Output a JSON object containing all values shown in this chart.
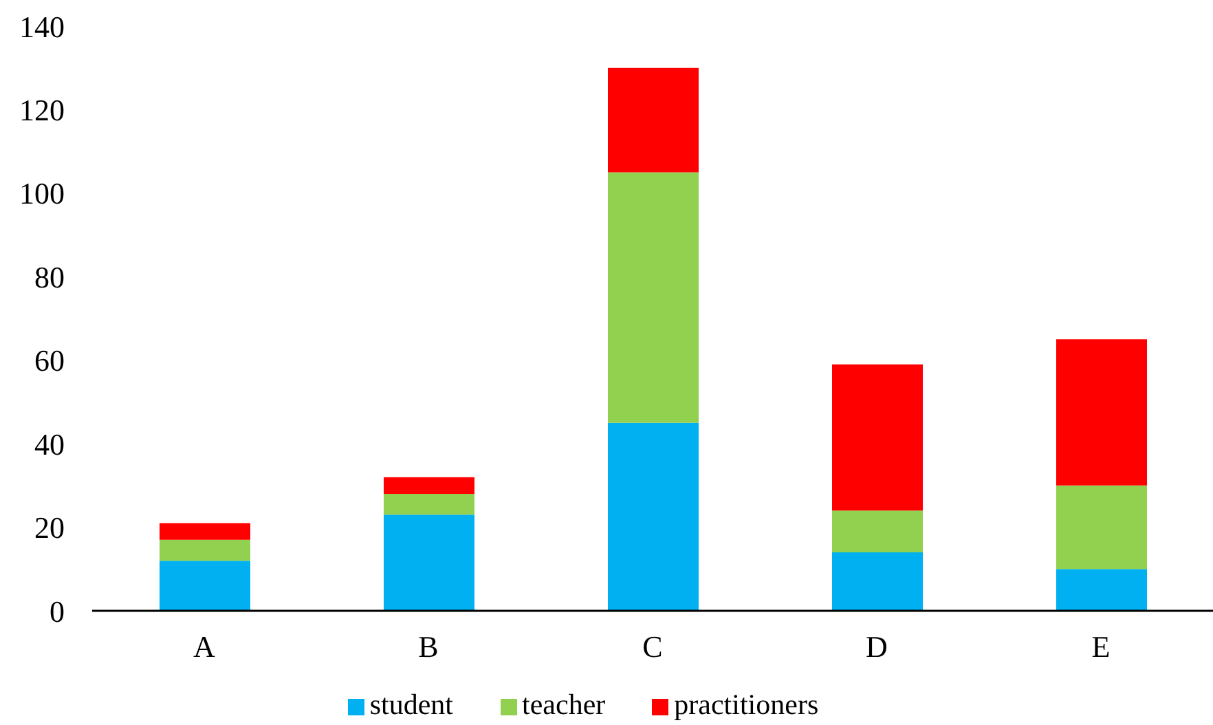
{
  "chart_data": {
    "type": "bar",
    "stacked": true,
    "categories": [
      "A",
      "B",
      "C",
      "D",
      "E"
    ],
    "series": [
      {
        "name": "student",
        "color": "#00b0f0",
        "values": [
          12,
          23,
          45,
          14,
          10
        ]
      },
      {
        "name": "teacher",
        "color": "#92d050",
        "values": [
          5,
          5,
          60,
          10,
          20
        ]
      },
      {
        "name": "practitioners",
        "color": "#ff0000",
        "values": [
          4,
          4,
          25,
          35,
          35
        ]
      }
    ],
    "ylim": [
      0,
      140
    ],
    "yticks": [
      0,
      20,
      40,
      60,
      80,
      100,
      120,
      140
    ],
    "legend": "bottom"
  }
}
